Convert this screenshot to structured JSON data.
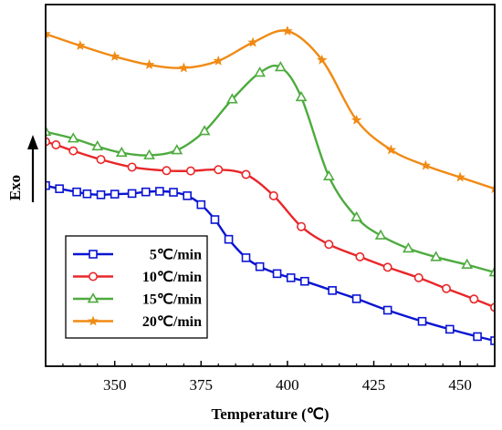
{
  "chart_data": {
    "type": "line",
    "title": "",
    "xlabel": "Temperature (℃)",
    "ylabel": "Exo",
    "xlim": [
      330,
      460
    ],
    "ylim": [
      0,
      100
    ],
    "xticks": [
      350,
      375,
      400,
      425,
      450
    ],
    "grid": false,
    "legend_position": "bottom-left",
    "series": [
      {
        "name": "5℃/min",
        "color": "#0a14d2",
        "marker": "square",
        "x": [
          330,
          334,
          339,
          342,
          346,
          350,
          355,
          359,
          363,
          367,
          371,
          375,
          379,
          383,
          388,
          392,
          397,
          401,
          405,
          413,
          420,
          429,
          439,
          447,
          455,
          460
        ],
        "y": [
          48.8,
          47.8,
          46.8,
          46.2,
          45.9,
          46.1,
          46.3,
          46.8,
          47.0,
          46.7,
          45.6,
          42.8,
          38.1,
          31.9,
          26.1,
          23.3,
          21.1,
          19.8,
          18.7,
          15.8,
          13.2,
          9.6,
          6.1,
          3.6,
          1.3,
          0.0
        ]
      },
      {
        "name": "10℃/min",
        "color": "#e8272a",
        "marker": "circle",
        "x": [
          330,
          333,
          338,
          346,
          355,
          365,
          372,
          380,
          388,
          396,
          404,
          412,
          421,
          429,
          438,
          446,
          454,
          460
        ],
        "y": [
          62.6,
          61.6,
          59.7,
          57.0,
          54.6,
          53.5,
          53.4,
          53.8,
          52.3,
          45.6,
          35.9,
          30.3,
          26.4,
          23.1,
          19.8,
          16.4,
          13.1,
          10.5
        ]
      },
      {
        "name": "15℃/min",
        "color": "#4dab3e",
        "marker": "triangle",
        "x": [
          330,
          338,
          345,
          352,
          360,
          368,
          376,
          384,
          392,
          398,
          404,
          412,
          420,
          427,
          435,
          443,
          452,
          460
        ],
        "y": [
          65.7,
          63.6,
          61.1,
          59.1,
          58.3,
          59.9,
          65.9,
          75.9,
          84.3,
          86.0,
          76.6,
          51.7,
          38.8,
          33.1,
          29.0,
          26.3,
          23.9,
          21.5
        ]
      },
      {
        "name": "20℃/min",
        "color": "#f08a14",
        "marker": "star",
        "x": [
          330,
          340,
          350,
          360,
          370,
          380,
          390,
          400,
          410,
          420,
          430,
          440,
          450,
          460
        ],
        "y": [
          96.5,
          92.8,
          89.4,
          86.8,
          85.8,
          88.0,
          93.8,
          97.4,
          88.3,
          69.4,
          60.0,
          55.1,
          51.4,
          47.8
        ]
      }
    ]
  }
}
